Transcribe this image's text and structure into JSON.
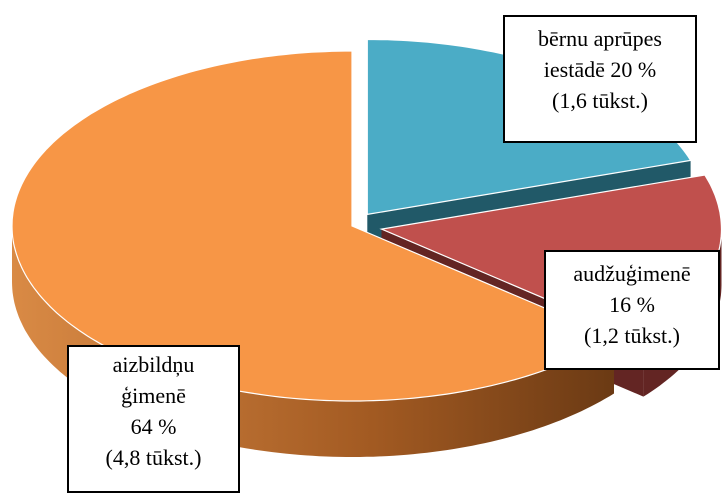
{
  "chart_data": {
    "type": "pie3d",
    "categories": [
      "bērnu aprūpes iestādē",
      "audžuģimenē",
      "aizbildņu ģimenē"
    ],
    "values": [
      20,
      16,
      64
    ],
    "value_labels": [
      "20 %",
      "16 %",
      "64 %"
    ],
    "count_labels": [
      "(1,6 tūkst.)",
      "(1,2 tūkst.)",
      "(4,8 tūkst.)"
    ],
    "colors": [
      "#4bacc6",
      "#c0504d",
      "#f79646"
    ],
    "wall_colors": [
      "#215968",
      "#632523",
      "#8a4a1c"
    ]
  }
}
